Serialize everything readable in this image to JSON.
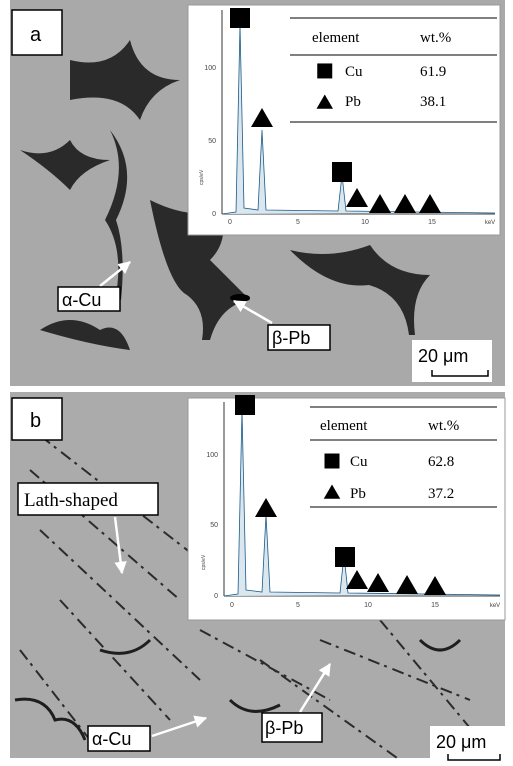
{
  "panels": [
    {
      "label": "a",
      "spectrum": {
        "y_axis_label": "cps/eV",
        "x_axis_label": "keV",
        "yticks": [
          0,
          50,
          100
        ],
        "xticks": [
          0,
          5,
          10,
          15
        ]
      },
      "table": {
        "header": [
          "element",
          "wt.%"
        ],
        "rows": [
          [
            "Cu",
            "61.9"
          ],
          [
            "Pb",
            "38.1"
          ]
        ]
      },
      "annotations": [
        "α-Cu",
        "β-Pb"
      ],
      "scale_bar": "20 μm"
    },
    {
      "label": "b",
      "spectrum": {
        "y_axis_label": "cps/eV",
        "x_axis_label": "keV",
        "yticks": [
          0,
          50,
          100
        ],
        "xticks": [
          0,
          5,
          10,
          15
        ]
      },
      "table": {
        "header": [
          "element",
          "wt.%"
        ],
        "rows": [
          [
            "Cu",
            "62.8"
          ],
          [
            "Pb",
            "37.2"
          ]
        ]
      },
      "annotations": [
        "Lath-shaped",
        "α-Cu",
        "β-Pb"
      ],
      "scale_bar": "20 μm"
    }
  ]
}
